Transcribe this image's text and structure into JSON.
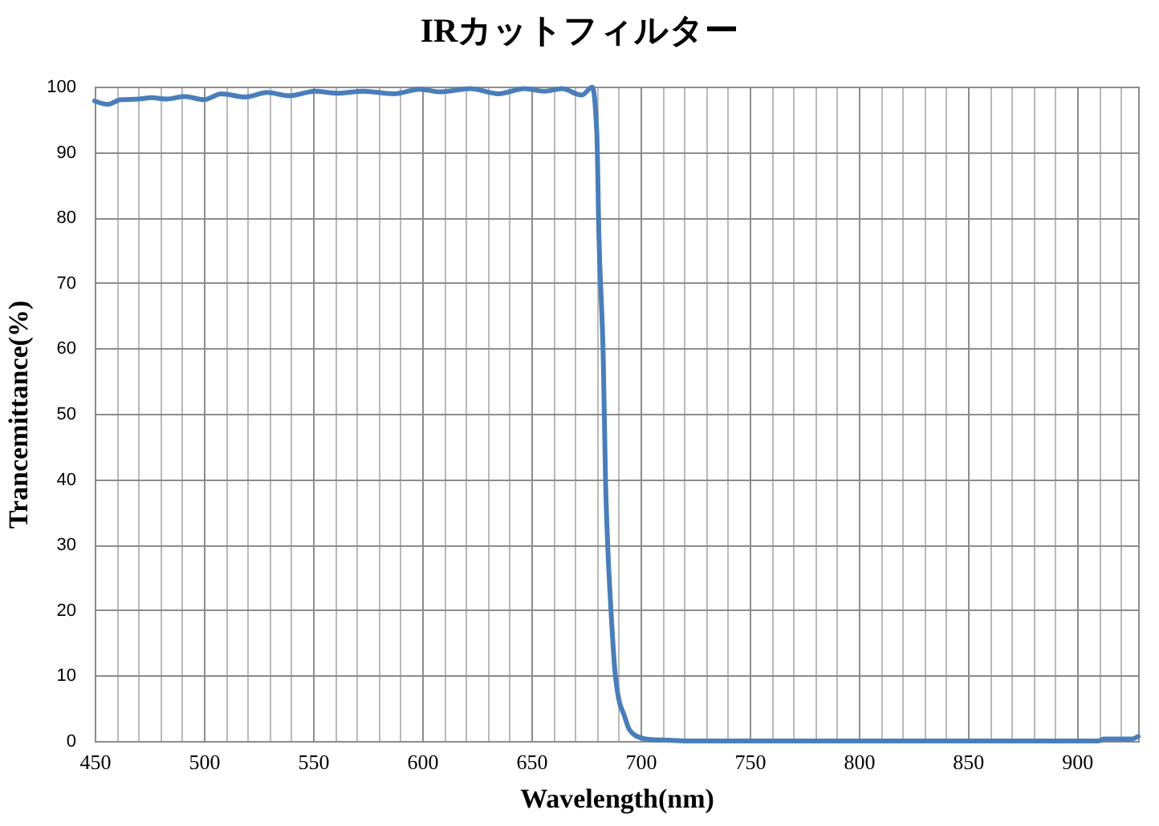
{
  "chart_data": {
    "type": "line",
    "title": "IRカットフィルター",
    "xlabel": "Wavelength(nm)",
    "ylabel": "Trancemittance(%)",
    "x": [
      450,
      456,
      462,
      470,
      476,
      483,
      491,
      500,
      508,
      519,
      529,
      539,
      551,
      561,
      573,
      587,
      599,
      608,
      622,
      635,
      647,
      656,
      664,
      673,
      678,
      680,
      681,
      683,
      684,
      685,
      686.5,
      688.5,
      690,
      692.5,
      695,
      700,
      705,
      715,
      720,
      910,
      912,
      925,
      928
    ],
    "series": [
      {
        "color": "#4a7ebb",
        "values": [
          97.8,
          97.3,
          98.0,
          98.1,
          98.3,
          98.1,
          98.5,
          98.0,
          98.9,
          98.4,
          99.1,
          98.6,
          99.3,
          99.0,
          99.3,
          98.9,
          99.6,
          99.2,
          99.7,
          98.9,
          99.7,
          99.3,
          99.7,
          98.7,
          99.9,
          93,
          77,
          58,
          40,
          30,
          20,
          10,
          6.5,
          4,
          1.7,
          0.5,
          0.2,
          0.1,
          0,
          0,
          0.3,
          0.3,
          0.7
        ]
      }
    ],
    "xlim": [
      450,
      928
    ],
    "ylim": [
      0,
      100
    ],
    "xticks": [
      450,
      {
        "value": 460,
        "label": null
      },
      {
        "value": 470,
        "label": null
      },
      {
        "value": 480,
        "label": null
      },
      {
        "value": 490,
        "label": null
      },
      500,
      {
        "value": 510,
        "label": null
      },
      {
        "value": 520,
        "label": null
      },
      {
        "value": 530,
        "label": null
      },
      {
        "value": 540,
        "label": null
      },
      550,
      {
        "value": 560,
        "label": null
      },
      {
        "value": 570,
        "label": null
      },
      {
        "value": 580,
        "label": null
      },
      {
        "value": 590,
        "label": null
      },
      600,
      {
        "value": 610,
        "label": null
      },
      {
        "value": 620,
        "label": null
      },
      {
        "value": 630,
        "label": null
      },
      {
        "value": 640,
        "label": null
      },
      650,
      {
        "value": 660,
        "label": null
      },
      {
        "value": 670,
        "label": null
      },
      {
        "value": 680,
        "label": null
      },
      {
        "value": 690,
        "label": null
      },
      700,
      {
        "value": 710,
        "label": null
      },
      {
        "value": 720,
        "label": null
      },
      {
        "value": 730,
        "label": null
      },
      {
        "value": 740,
        "label": null
      },
      750,
      {
        "value": 760,
        "label": null
      },
      {
        "value": 770,
        "label": null
      },
      {
        "value": 780,
        "label": null
      },
      {
        "value": 790,
        "label": null
      },
      800,
      {
        "value": 810,
        "label": null
      },
      {
        "value": 820,
        "label": null
      },
      {
        "value": 830,
        "label": null
      },
      {
        "value": 840,
        "label": null
      },
      850,
      {
        "value": 860,
        "label": null
      },
      {
        "value": 870,
        "label": null
      },
      {
        "value": 880,
        "label": null
      },
      {
        "value": 890,
        "label": null
      },
      900,
      {
        "value": 910,
        "label": null
      },
      {
        "value": 920,
        "label": null
      }
    ],
    "yticks": [
      0,
      10,
      20,
      30,
      40,
      50,
      60,
      70,
      80,
      90,
      100
    ],
    "grid": true,
    "line_style": "solid"
  }
}
